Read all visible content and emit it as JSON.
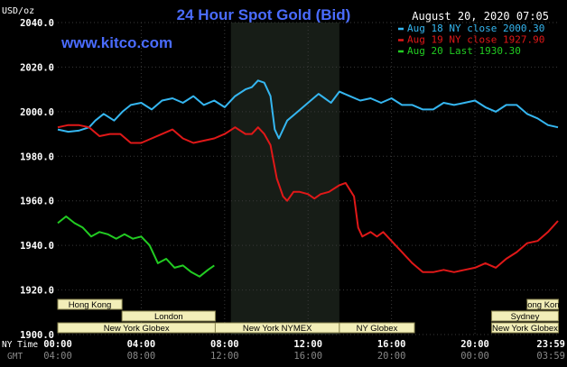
{
  "header": {
    "title": "24 Hour Spot Gold (Bid)",
    "timestamp": "August 20, 2020 07:05",
    "unit": "USD/oz",
    "watermark": "www.kitco.com"
  },
  "axis_row_labels": {
    "ny": "NY Time",
    "gmt": "GMT"
  },
  "sessions": [
    {
      "label": "Hong Kong",
      "row": 0,
      "start": 0,
      "end": 3.08
    },
    {
      "label": "Hong Kong",
      "row": 0,
      "start": 22.5,
      "end": 24
    },
    {
      "label": "London",
      "row": 1,
      "start": 3.08,
      "end": 7.55
    },
    {
      "label": "Sydney",
      "row": 1,
      "start": 20.8,
      "end": 24
    },
    {
      "label": "New York Globex",
      "row": 2,
      "start": 0,
      "end": 7.55
    },
    {
      "label": "New York NYMEX",
      "row": 2,
      "start": 7.55,
      "end": 13.5
    },
    {
      "label": "NY Globex",
      "row": 2,
      "start": 13.5,
      "end": 17.1
    },
    {
      "label": "New York Globex",
      "row": 2,
      "start": 20.8,
      "end": 24
    }
  ],
  "colors": {
    "background": "#000000",
    "grid": "#3a3a3a",
    "axis_text": "#ffffff",
    "title": "#4a6cff",
    "watermark": "#4a6cff",
    "session_fill": "#f2eeb8",
    "session_text": "#000000",
    "session_border": "#8a8550",
    "nymex_band": "#171d17"
  },
  "chart_data": {
    "type": "line",
    "title": "24 Hour Spot Gold (Bid)",
    "ylabel": "USD/oz",
    "xlabel": "",
    "ylim": [
      1900,
      2040
    ],
    "xlim": [
      0,
      23.98
    ],
    "y_ticks": [
      "1900.0",
      "1920.0",
      "1940.0",
      "1960.0",
      "1980.0",
      "2000.0",
      "2020.0",
      "2040.0"
    ],
    "x_ticks_ny": [
      "00:00",
      "04:00",
      "08:00",
      "12:00",
      "16:00",
      "20:00",
      "23:59"
    ],
    "x_ticks_gmt": [
      "04:00",
      "08:00",
      "12:00",
      "16:00",
      "20:00",
      "00:00",
      "03:59"
    ],
    "x_tick_positions": [
      0,
      4,
      8,
      12,
      16,
      20,
      23.98
    ],
    "grid": true,
    "legend_position": "top-right",
    "shaded_region": {
      "start": 8.3,
      "end": 13.5
    },
    "series": [
      {
        "name": "Aug 18 NY close 2000.30",
        "color": "#35b6f0",
        "x": [
          0,
          0.5,
          1,
          1.5,
          1.8,
          2.2,
          2.7,
          3.1,
          3.5,
          4,
          4.5,
          5,
          5.5,
          6,
          6.5,
          7,
          7.5,
          8,
          8.5,
          9,
          9.3,
          9.6,
          9.9,
          10.2,
          10.4,
          10.6,
          11,
          11.5,
          12,
          12.5,
          12.8,
          13.1,
          13.5,
          14,
          14.5,
          15,
          15.5,
          16,
          16.5,
          17,
          17.5,
          18,
          18.5,
          19,
          19.5,
          20,
          20.5,
          21,
          21.5,
          22,
          22.5,
          23,
          23.5,
          23.98
        ],
        "y": [
          1992,
          1991,
          1991.5,
          1993,
          1996,
          1999,
          1996,
          2000,
          2003,
          2004,
          2001,
          2005,
          2006,
          2004,
          2007,
          2003,
          2005,
          2002,
          2007,
          2010,
          2011,
          2014,
          2013,
          2007,
          1992,
          1988,
          1996,
          2000,
          2004,
          2008,
          2006,
          2004,
          2009,
          2007,
          2005,
          2006,
          2004,
          2006,
          2003,
          2003,
          2001,
          2001,
          2004,
          2003,
          2004,
          2005,
          2002,
          2000,
          2003,
          2003,
          1999,
          1997,
          1994,
          1993
        ]
      },
      {
        "name": "Aug 19 NY close 1927.90",
        "color": "#e01818",
        "x": [
          0,
          0.5,
          1,
          1.5,
          2,
          2.5,
          3,
          3.5,
          4,
          4.5,
          5,
          5.5,
          6,
          6.5,
          7,
          7.5,
          8,
          8.5,
          9,
          9.3,
          9.6,
          9.9,
          10.2,
          10.5,
          10.8,
          11,
          11.3,
          11.6,
          12,
          12.3,
          12.6,
          13,
          13.5,
          13.8,
          14.2,
          14.4,
          14.6,
          15,
          15.3,
          15.6,
          16,
          16.5,
          17,
          17.5,
          18,
          18.5,
          19,
          19.5,
          20,
          20.5,
          21,
          21.5,
          22,
          22.5,
          23,
          23.5,
          23.98
        ],
        "y": [
          1993,
          1994,
          1994,
          1993,
          1989,
          1990,
          1990,
          1986,
          1986,
          1988,
          1990,
          1992,
          1988,
          1986,
          1987,
          1988,
          1990,
          1993,
          1990,
          1990,
          1993,
          1990,
          1985,
          1970,
          1962,
          1960,
          1964,
          1964,
          1963,
          1961,
          1963,
          1964,
          1967,
          1968,
          1962,
          1948,
          1944,
          1946,
          1944,
          1946,
          1942,
          1937,
          1932,
          1928,
          1928,
          1929,
          1928,
          1929,
          1930,
          1932,
          1930,
          1934,
          1937,
          1941,
          1942,
          1946,
          1951
        ]
      },
      {
        "name": "Aug 20 Last 1930.30",
        "color": "#22cc22",
        "x": [
          0,
          0.4,
          0.8,
          1.2,
          1.6,
          2,
          2.4,
          2.8,
          3.2,
          3.6,
          4,
          4.4,
          4.8,
          5.2,
          5.6,
          6,
          6.4,
          6.8,
          7.2,
          7.5
        ],
        "y": [
          1950,
          1953,
          1950,
          1948,
          1944,
          1946,
          1945,
          1943,
          1945,
          1943,
          1944,
          1940,
          1932,
          1934,
          1930,
          1931,
          1928,
          1926,
          1929,
          1931
        ]
      }
    ]
  }
}
